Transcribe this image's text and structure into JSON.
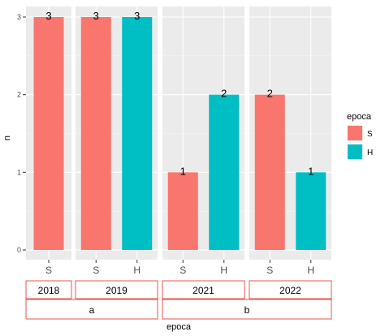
{
  "chart_data": {
    "type": "bar",
    "xlabel": "epoca",
    "ylabel": "n",
    "ylim": [
      0,
      3
    ],
    "yticks": [
      "0",
      "1",
      "2",
      "3"
    ],
    "grid": true,
    "legend": {
      "title": "epoca",
      "placement": "right",
      "items": [
        {
          "label": "S",
          "color": "#F8766D"
        },
        {
          "label": "H",
          "color": "#00BFC4"
        }
      ]
    },
    "panels": [
      {
        "year": "2018",
        "group": "a",
        "categories": [
          "S"
        ],
        "values": [
          3
        ]
      },
      {
        "year": "2019",
        "group": "a",
        "categories": [
          "S",
          "H"
        ],
        "values": [
          3,
          3
        ]
      },
      {
        "year": "2021",
        "group": "b",
        "categories": [
          "S",
          "H"
        ],
        "values": [
          1,
          2
        ]
      },
      {
        "year": "2022",
        "group": "b",
        "categories": [
          "S",
          "H"
        ],
        "values": [
          2,
          1
        ]
      }
    ],
    "groups": [
      "a",
      "b"
    ]
  }
}
